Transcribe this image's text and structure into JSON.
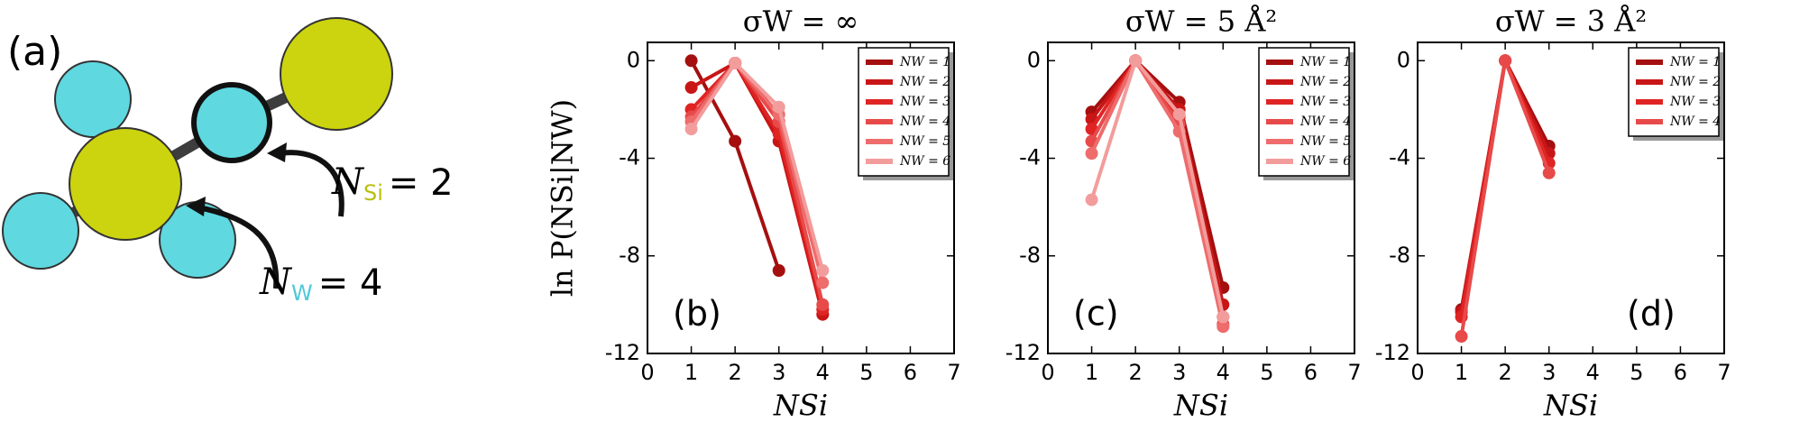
{
  "diagram": {
    "label": "(a)",
    "nsi": {
      "symbol": "N",
      "sub": "Si",
      "eq": "= 2"
    },
    "nw": {
      "symbol": "N",
      "sub": "W",
      "eq": "= 4"
    }
  },
  "chart_data": [
    {
      "type": "line",
      "title": "σW = ∞",
      "panel": "(b)",
      "xlabel": "NSi",
      "ylabel": "ln P(NSi|NW)",
      "x": [
        1,
        2,
        3,
        4
      ],
      "xlim": [
        0,
        7
      ],
      "xticks": [
        0,
        1,
        2,
        3,
        4,
        5,
        6,
        7
      ],
      "ylim": [
        -12,
        0.75
      ],
      "yticks": [
        -12,
        -8,
        -4,
        0
      ],
      "legend": "upper right",
      "series": [
        {
          "name": "NW = 1",
          "color": "#a50f0f",
          "values": [
            0,
            -3.3,
            -8.6,
            null
          ]
        },
        {
          "name": "NW = 2",
          "color": "#c81616",
          "values": [
            -1.1,
            -0.1,
            -3.3,
            -10.4
          ]
        },
        {
          "name": "NW = 3",
          "color": "#e02424",
          "values": [
            -2,
            -0.1,
            -3.0,
            -10.2
          ]
        },
        {
          "name": "NW = 4",
          "color": "#e84a4a",
          "values": [
            -2.3,
            -0.1,
            -2.5,
            -10
          ]
        },
        {
          "name": "NW = 5",
          "color": "#ee6c6c",
          "values": [
            -2.5,
            -0.1,
            -2.2,
            -9.1
          ]
        },
        {
          "name": "NW = 6",
          "color": "#f39c9c",
          "values": [
            -2.8,
            -0.1,
            -1.9,
            -8.6
          ]
        }
      ]
    },
    {
      "type": "line",
      "title": "σW = 5 Å²",
      "panel": "(c)",
      "xlabel": "NSi",
      "x": [
        1,
        2,
        3,
        4
      ],
      "xlim": [
        0,
        7
      ],
      "xticks": [
        0,
        1,
        2,
        3,
        4,
        5,
        6,
        7
      ],
      "ylim": [
        -12,
        0.75
      ],
      "yticks": [
        -12,
        -8,
        -4,
        0
      ],
      "legend": "upper right",
      "series": [
        {
          "name": "NW = 1",
          "color": "#a50f0f",
          "values": [
            -2.1,
            0,
            -1.7,
            -9.3
          ]
        },
        {
          "name": "NW = 2",
          "color": "#c81616",
          "values": [
            -2.4,
            0,
            -2.0,
            -10.0
          ]
        },
        {
          "name": "NW = 3",
          "color": "#e02424",
          "values": [
            -2.8,
            0,
            -2.3,
            -10.5
          ]
        },
        {
          "name": "NW = 4",
          "color": "#e84a4a",
          "values": [
            -3.3,
            0,
            -2.6,
            -10.8
          ]
        },
        {
          "name": "NW = 5",
          "color": "#ee6c6c",
          "values": [
            -3.8,
            0,
            -2.9,
            -10.9
          ]
        },
        {
          "name": "NW = 6",
          "color": "#f39c9c",
          "values": [
            -5.7,
            0,
            -2.2,
            -10.5
          ]
        }
      ]
    },
    {
      "type": "line",
      "title": "σW = 3 Å²",
      "panel": "(d)",
      "xlabel": "NSi",
      "x": [
        1,
        2,
        3
      ],
      "xlim": [
        0,
        7
      ],
      "xticks": [
        0,
        1,
        2,
        3,
        4,
        5,
        6,
        7
      ],
      "ylim": [
        -12,
        0.75
      ],
      "yticks": [
        -12,
        -8,
        -4,
        0
      ],
      "legend": "upper right",
      "series": [
        {
          "name": "NW = 1",
          "color": "#a50f0f",
          "values": [
            -10.2,
            0,
            -3.5
          ]
        },
        {
          "name": "NW = 2",
          "color": "#c81616",
          "values": [
            -10.3,
            0,
            -3.8
          ]
        },
        {
          "name": "NW = 3",
          "color": "#e02424",
          "values": [
            -10.5,
            0,
            -4.2
          ]
        },
        {
          "name": "NW = 4",
          "color": "#e84a4a",
          "values": [
            -11.3,
            0,
            -4.6
          ]
        }
      ]
    }
  ]
}
